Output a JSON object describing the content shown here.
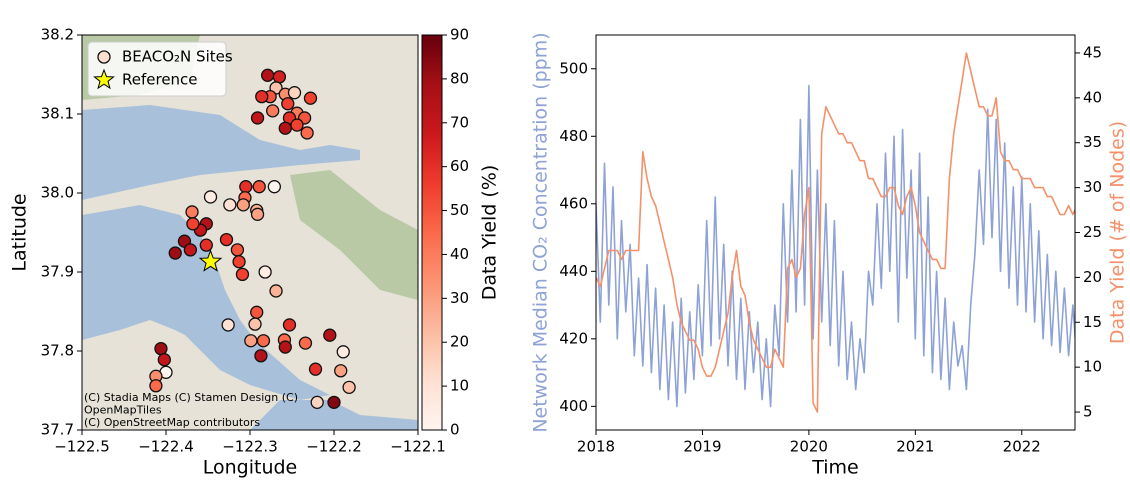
{
  "chart_data": [
    {
      "type": "scatter",
      "xlabel": "Longitude",
      "ylabel": "Latitude",
      "xlim": [
        -122.5,
        -122.1
      ],
      "xticks": [
        {
          "value": -122.5,
          "label": "−122.5"
        },
        {
          "value": -122.4,
          "label": "−122.4"
        },
        {
          "value": -122.3,
          "label": "−122.3"
        },
        {
          "value": -122.2,
          "label": "−122.2"
        },
        {
          "value": -122.1,
          "label": "−122.1"
        }
      ],
      "ylim": [
        37.7,
        38.2
      ],
      "yticks": [
        37.7,
        37.8,
        37.9,
        {
          "value": 38.0,
          "label": "38.0"
        },
        38.1,
        38.2
      ],
      "colorbar_label": "Data Yield (%)",
      "clim": [
        0,
        90
      ],
      "cticks": [
        0,
        10,
        20,
        30,
        40,
        50,
        60,
        70,
        80,
        90
      ],
      "colorscale": [
        "#fff5f0",
        "#fee0d2",
        "#fcbba1",
        "#fc9272",
        "#fb6a4a",
        "#ef3b2c",
        "#cb181d",
        "#a50f15",
        "#67000d"
      ],
      "legend": "upper left",
      "series": [
        {
          "name": "BEACO₂N Sites",
          "marker": "circle",
          "x": [
            -122.279,
            -122.265,
            -122.269,
            -122.276,
            -122.258,
            -122.247,
            -122.286,
            -122.255,
            -122.228,
            -122.273,
            -122.244,
            -122.253,
            -122.235,
            -122.291,
            -122.258,
            -122.244,
            -122.232,
            -122.347,
            -122.305,
            -122.289,
            -122.271,
            -122.306,
            -122.324,
            -122.308,
            -122.292,
            -122.291,
            -122.369,
            -122.352,
            -122.359,
            -122.368,
            -122.378,
            -122.371,
            -122.389,
            -122.352,
            -122.328,
            -122.315,
            -122.313,
            -122.309,
            -122.282,
            -122.269,
            -122.326,
            -122.292,
            -122.294,
            -122.253,
            -122.259,
            -122.284,
            -122.287,
            -122.258,
            -122.234,
            -122.205,
            -122.189,
            -122.299,
            -122.222,
            -122.192,
            -122.182,
            -122.22,
            -122.2,
            -122.406,
            -122.402,
            -122.4,
            -122.412,
            -122.412
          ],
          "y": [
            38.149,
            38.147,
            38.133,
            38.122,
            38.125,
            38.127,
            38.122,
            38.113,
            38.12,
            38.104,
            38.101,
            38.095,
            38.095,
            38.095,
            38.082,
            38.086,
            38.076,
            37.995,
            38.008,
            38.008,
            38.008,
            37.994,
            37.985,
            37.985,
            37.978,
            37.973,
            37.976,
            37.961,
            37.953,
            37.961,
            37.939,
            37.928,
            37.924,
            37.934,
            37.941,
            37.928,
            37.913,
            37.897,
            37.9,
            37.876,
            37.833,
            37.849,
            37.834,
            37.833,
            37.814,
            37.813,
            37.794,
            37.805,
            37.81,
            37.82,
            37.799,
            37.813,
            37.777,
            37.775,
            37.754,
            37.735,
            37.735,
            37.803,
            37.789,
            37.773,
            37.768,
            37.756
          ],
          "values": [
            75,
            65,
            20,
            50,
            35,
            15,
            60,
            55,
            55,
            40,
            40,
            60,
            50,
            70,
            75,
            55,
            45,
            5,
            60,
            50,
            0,
            45,
            10,
            30,
            25,
            30,
            40,
            75,
            70,
            55,
            80,
            70,
            80,
            60,
            60,
            50,
            55,
            55,
            5,
            25,
            10,
            50,
            20,
            60,
            45,
            45,
            75,
            75,
            45,
            75,
            5,
            30,
            60,
            30,
            20,
            15,
            85,
            80,
            70,
            0,
            35,
            45
          ]
        },
        {
          "name": "Reference",
          "marker": "star",
          "color": "#ffff00",
          "x": [
            -122.347
          ],
          "y": [
            37.913
          ]
        }
      ],
      "annotations": [
        "(C) Stadia Maps (C) Stamen Design (C)",
        "OpenMapTiles",
        "(C) OpenStreetMap contributors"
      ]
    },
    {
      "type": "line",
      "xlabel": "Time",
      "ylabel": "Network Median CO₂ Concentration (ppm)",
      "y2label": "Data Yield (# of Nodes)",
      "xlim": [
        2018,
        2022.5
      ],
      "xticks": [
        2018,
        2019,
        2020,
        2021,
        2022
      ],
      "ylim": [
        393,
        510
      ],
      "yticks": [
        400,
        420,
        440,
        460,
        480,
        500
      ],
      "y2lim": [
        3,
        47
      ],
      "y2ticks": [
        5,
        10,
        15,
        20,
        25,
        30,
        35,
        40,
        45
      ],
      "x": [
        2018,
        2018.04,
        2018.08,
        2018.12,
        2018.16,
        2018.2,
        2018.24,
        2018.28,
        2018.32,
        2018.36,
        2018.4,
        2018.44,
        2018.48,
        2018.52,
        2018.56,
        2018.6,
        2018.64,
        2018.68,
        2018.72,
        2018.76,
        2018.8,
        2018.84,
        2018.88,
        2018.92,
        2018.96,
        2019,
        2019.04,
        2019.08,
        2019.12,
        2019.16,
        2019.2,
        2019.24,
        2019.28,
        2019.32,
        2019.36,
        2019.4,
        2019.44,
        2019.48,
        2019.52,
        2019.56,
        2019.6,
        2019.64,
        2019.68,
        2019.72,
        2019.76,
        2019.8,
        2019.84,
        2019.88,
        2019.92,
        2019.96,
        2020,
        2020.04,
        2020.08,
        2020.12,
        2020.16,
        2020.2,
        2020.24,
        2020.28,
        2020.32,
        2020.36,
        2020.4,
        2020.44,
        2020.48,
        2020.52,
        2020.56,
        2020.6,
        2020.64,
        2020.68,
        2020.72,
        2020.76,
        2020.8,
        2020.84,
        2020.88,
        2020.92,
        2020.96,
        2021,
        2021.04,
        2021.08,
        2021.12,
        2021.16,
        2021.2,
        2021.24,
        2021.28,
        2021.32,
        2021.36,
        2021.4,
        2021.44,
        2021.48,
        2021.52,
        2021.56,
        2021.6,
        2021.64,
        2021.68,
        2021.72,
        2021.76,
        2021.8,
        2021.84,
        2021.88,
        2021.92,
        2021.96,
        2022,
        2022.04,
        2022.08,
        2022.12,
        2022.16,
        2022.2,
        2022.24,
        2022.28,
        2022.32,
        2022.36,
        2022.4,
        2022.44,
        2022.48,
        2022.52,
        2022.56
      ],
      "series": [
        {
          "color": "#8ea2d6",
          "values": [
            460,
            425,
            472,
            430,
            465,
            420,
            455,
            428,
            448,
            415,
            438,
            412,
            442,
            410,
            435,
            405,
            430,
            402,
            425,
            400,
            432,
            404,
            428,
            408,
            436,
            415,
            455,
            418,
            462,
            420,
            448,
            412,
            440,
            408,
            432,
            405,
            428,
            410,
            425,
            402,
            420,
            400,
            430,
            415,
            460,
            425,
            470,
            428,
            485,
            430,
            495,
            420,
            470,
            425,
            460,
            418,
            455,
            412,
            440,
            408,
            425,
            405,
            420,
            410,
            440,
            430,
            460,
            435,
            475,
            440,
            480,
            425,
            482,
            438,
            470,
            420,
            475,
            415,
            462,
            410,
            440,
            408,
            432,
            405,
            425,
            412,
            418,
            405,
            430,
            445,
            470,
            448,
            488,
            450,
            485,
            440,
            478,
            435,
            465,
            430,
            468,
            428,
            460,
            425,
            452,
            420,
            445,
            418,
            440,
            416,
            435,
            415,
            430,
            412,
            410
          ]
        },
        {
          "color": "#f4916a",
          "axis": "y2",
          "values": [
            20,
            19,
            21,
            23,
            23,
            23,
            22,
            23,
            23,
            23,
            23,
            34,
            31,
            29,
            28,
            26,
            24,
            22,
            20,
            17,
            15,
            14,
            13,
            13,
            12,
            10,
            9,
            9,
            10,
            12,
            14,
            16,
            20,
            23,
            19,
            18,
            15,
            13,
            12,
            11,
            10,
            10,
            12,
            11,
            10,
            21,
            22,
            20,
            21,
            27,
            30,
            6,
            5,
            36,
            39,
            38,
            37,
            36,
            36,
            35,
            35,
            34,
            33,
            33,
            31,
            31,
            30,
            29,
            29,
            30,
            30,
            28,
            27,
            29,
            30,
            28,
            25,
            24,
            23,
            22,
            22,
            21,
            21,
            31,
            36,
            39,
            42,
            45,
            43,
            41,
            39,
            39,
            38,
            38,
            40,
            34,
            33,
            33,
            32,
            32,
            31,
            31,
            31,
            30,
            30,
            30,
            29,
            29,
            28,
            27,
            27,
            28,
            27,
            28,
            29
          ]
        }
      ]
    }
  ]
}
